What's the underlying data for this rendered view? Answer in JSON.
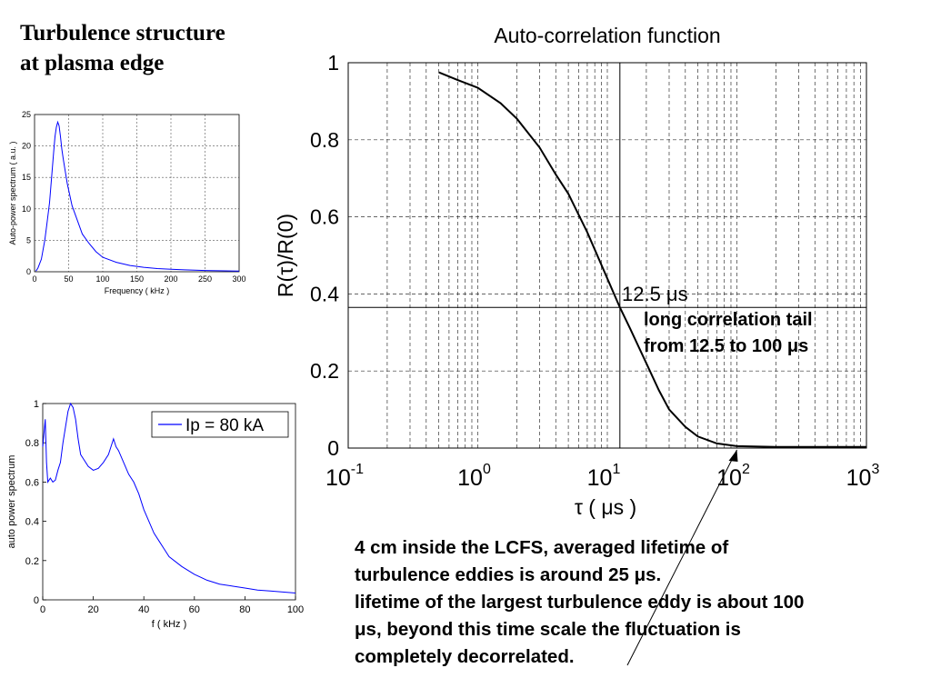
{
  "slide": {
    "title_line1": "Turbulence structure",
    "title_line2": "at plasma edge",
    "caption_line1": "4 cm inside the LCFS, averaged lifetime of",
    "caption_line2": "turbulence eddies is around 25 μs.",
    "caption_line3": "lifetime of the largest turbulence eddy is about 100",
    "caption_line4": "μs, beyond this time scale the fluctuation is",
    "caption_line5": "completely decorrelated."
  },
  "colors": {
    "blue_series": "#0000ff",
    "black_series": "#000000",
    "grid": "#444444"
  },
  "chart_data": [
    {
      "type": "line",
      "title": "",
      "xlabel": "Frequency ( kHz )",
      "ylabel": "Auto-power spectrum ( a.u. )",
      "xlim": [
        0,
        300
      ],
      "ylim": [
        0,
        25
      ],
      "xticks": [
        0,
        50,
        100,
        150,
        200,
        250,
        300
      ],
      "yticks": [
        0,
        5,
        10,
        15,
        20,
        25
      ],
      "grid": true,
      "series": [
        {
          "color": "#0000ff",
          "x": [
            2,
            5,
            10,
            15,
            18,
            22,
            25,
            28,
            30,
            32,
            34,
            36,
            38,
            40,
            42,
            45,
            48,
            50,
            55,
            60,
            65,
            70,
            80,
            90,
            100,
            120,
            140,
            160,
            180,
            200,
            220,
            250,
            280,
            300
          ],
          "y": [
            0.1,
            0.6,
            2,
            5,
            7.5,
            11,
            15,
            19,
            21.5,
            23,
            23.8,
            23.2,
            21.5,
            19.5,
            18,
            16,
            14,
            13,
            10.5,
            9,
            7.5,
            6,
            4.5,
            3.2,
            2.3,
            1.5,
            1.0,
            0.7,
            0.5,
            0.4,
            0.3,
            0.2,
            0.15,
            0.1
          ]
        }
      ]
    },
    {
      "type": "line",
      "title": "",
      "xlabel": "f  ( kHz )",
      "ylabel": "auto power spectrum",
      "xlim": [
        0,
        100
      ],
      "ylim": [
        0,
        1
      ],
      "xticks": [
        0,
        20,
        40,
        60,
        80,
        100
      ],
      "yticks": [
        0,
        0.2,
        0.4,
        0.6,
        0.8,
        1
      ],
      "grid": false,
      "legend": "top-right",
      "series": [
        {
          "name": "Ip = 80 kA",
          "color": "#0000ff",
          "x": [
            0,
            1,
            1.5,
            2,
            3,
            4,
            5,
            6,
            7,
            8,
            9,
            10,
            11,
            12,
            13,
            14,
            15,
            16,
            18,
            20,
            22,
            24,
            26,
            27,
            28,
            29,
            30,
            32,
            34,
            36,
            38,
            40,
            42,
            44,
            46,
            48,
            50,
            55,
            60,
            65,
            70,
            75,
            80,
            85,
            90,
            95,
            100
          ],
          "y": [
            0.78,
            0.92,
            0.7,
            0.6,
            0.62,
            0.6,
            0.61,
            0.66,
            0.7,
            0.8,
            0.88,
            0.96,
            1.0,
            0.98,
            0.92,
            0.82,
            0.74,
            0.72,
            0.68,
            0.66,
            0.67,
            0.7,
            0.74,
            0.78,
            0.82,
            0.78,
            0.76,
            0.7,
            0.64,
            0.6,
            0.54,
            0.46,
            0.4,
            0.34,
            0.3,
            0.26,
            0.22,
            0.17,
            0.13,
            0.1,
            0.08,
            0.07,
            0.06,
            0.05,
            0.045,
            0.04,
            0.035
          ]
        }
      ]
    },
    {
      "type": "line",
      "title": "Auto-correlation  function",
      "xlabel": "τ  ( μs )",
      "ylabel": "R(τ)/R(0)",
      "xscale": "log",
      "xlim": [
        0.1,
        1000
      ],
      "ylim": [
        0,
        1
      ],
      "xtick_bases": [
        "10",
        "10",
        "10",
        "10",
        "10"
      ],
      "xtick_exponents": [
        "-1",
        "0",
        "1",
        "2",
        "3"
      ],
      "yticks": [
        "0",
        "0.2",
        "0.4",
        "0.6",
        "0.8",
        "1"
      ],
      "grid": true,
      "series": [
        {
          "color": "#000000",
          "x": [
            0.5,
            0.7,
            1,
            1.5,
            2,
            3,
            4,
            5,
            7,
            10,
            12.5,
            15,
            20,
            25,
            30,
            40,
            50,
            70,
            100,
            200,
            500,
            1000
          ],
          "y": [
            0.975,
            0.955,
            0.935,
            0.895,
            0.855,
            0.78,
            0.71,
            0.66,
            0.56,
            0.44,
            0.365,
            0.31,
            0.22,
            0.15,
            0.1,
            0.055,
            0.03,
            0.012,
            0.005,
            0.003,
            0.003,
            0.003
          ]
        }
      ],
      "annotations": {
        "vline_label": "12.5 μs",
        "tail_line1": "long correlation tail",
        "tail_line2": "from 12.5 to 100 μs"
      },
      "reference_lines": {
        "x": 12.5,
        "y": 0.365
      }
    }
  ]
}
